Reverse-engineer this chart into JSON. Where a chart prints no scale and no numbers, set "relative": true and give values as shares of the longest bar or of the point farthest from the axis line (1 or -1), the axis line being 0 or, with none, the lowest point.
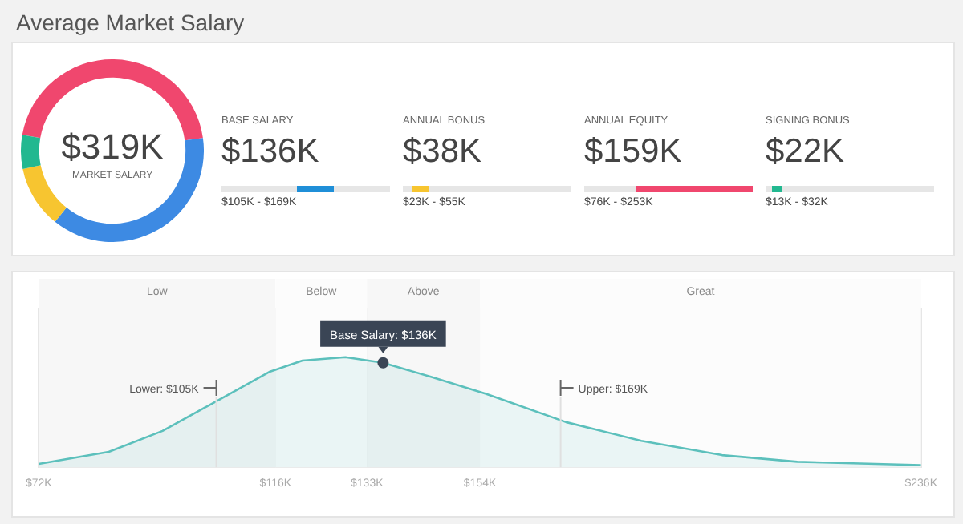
{
  "chart_data": [
    {
      "type": "donut",
      "title": "Average Market Salary",
      "categories": [
        null,
        null,
        null,
        null
      ],
      "values": [
        45,
        38,
        11,
        6
      ],
      "colors": [
        "#f0476e",
        "#3d8ae3",
        "#f7c530",
        "#22b890"
      ],
      "annotations": [
        "$319K",
        "MARKET SALARY"
      ]
    },
    {
      "type": "other",
      "annotations": [
        "BASE SALARY",
        "$136K",
        "$105K - $169K",
        "ANNUAL BONUS",
        "$38K",
        "$23K - $55K",
        "ANNUAL EQUITY",
        "$159K",
        "$76K - $253K",
        "SIGNING BONUS",
        "$22K",
        "$13K - $32K"
      ],
      "colors": [
        "#1f8fd8",
        "#f7c530",
        "#f0476e",
        "#22b890"
      ]
    },
    {
      "type": "area",
      "relative": true,
      "x": [
        72,
        85,
        95,
        105,
        115,
        121,
        129,
        136,
        145,
        155,
        170,
        184,
        199,
        213,
        236
      ],
      "series": [
        {
          "values": [
            0.03,
            0.14,
            0.33,
            0.6,
            0.87,
            0.97,
            1,
            0.95,
            0.82,
            0.67,
            0.41,
            0.24,
            0.11,
            0.05,
            0.02
          ],
          "color": "#5cc0bc"
        }
      ],
      "xlim": [
        72,
        236
      ],
      "xticks": [
        {
          "value": 72,
          "label": "$72K"
        },
        {
          "value": 116,
          "label": "$116K"
        },
        {
          "value": 133,
          "label": "$133K"
        },
        {
          "value": 154,
          "label": "$154K"
        },
        {
          "value": 236,
          "label": "$236K"
        }
      ],
      "grid": "x",
      "bands": [
        {
          "axis": "x",
          "from": 72,
          "to": 116,
          "label": "Low",
          "color": "#f7f7f7"
        },
        {
          "axis": "x",
          "from": 116,
          "to": 133,
          "label": "Below",
          "color": "#fcfcfc"
        },
        {
          "axis": "x",
          "from": 133,
          "to": 154,
          "label": "Above",
          "color": "#f7f7f7"
        },
        {
          "axis": "x",
          "from": 154,
          "to": 236,
          "label": "Great",
          "color": "#fcfcfc"
        }
      ],
      "ref_lines": [
        {
          "axis": "x",
          "value": 105,
          "label": "Lower: $105K"
        },
        {
          "axis": "x",
          "value": 169,
          "label": "Upper: $169K"
        }
      ],
      "annotations": [
        {
          "text": "Base Salary: $136K",
          "x": 136,
          "y": 0.95
        }
      ]
    }
  ]
}
